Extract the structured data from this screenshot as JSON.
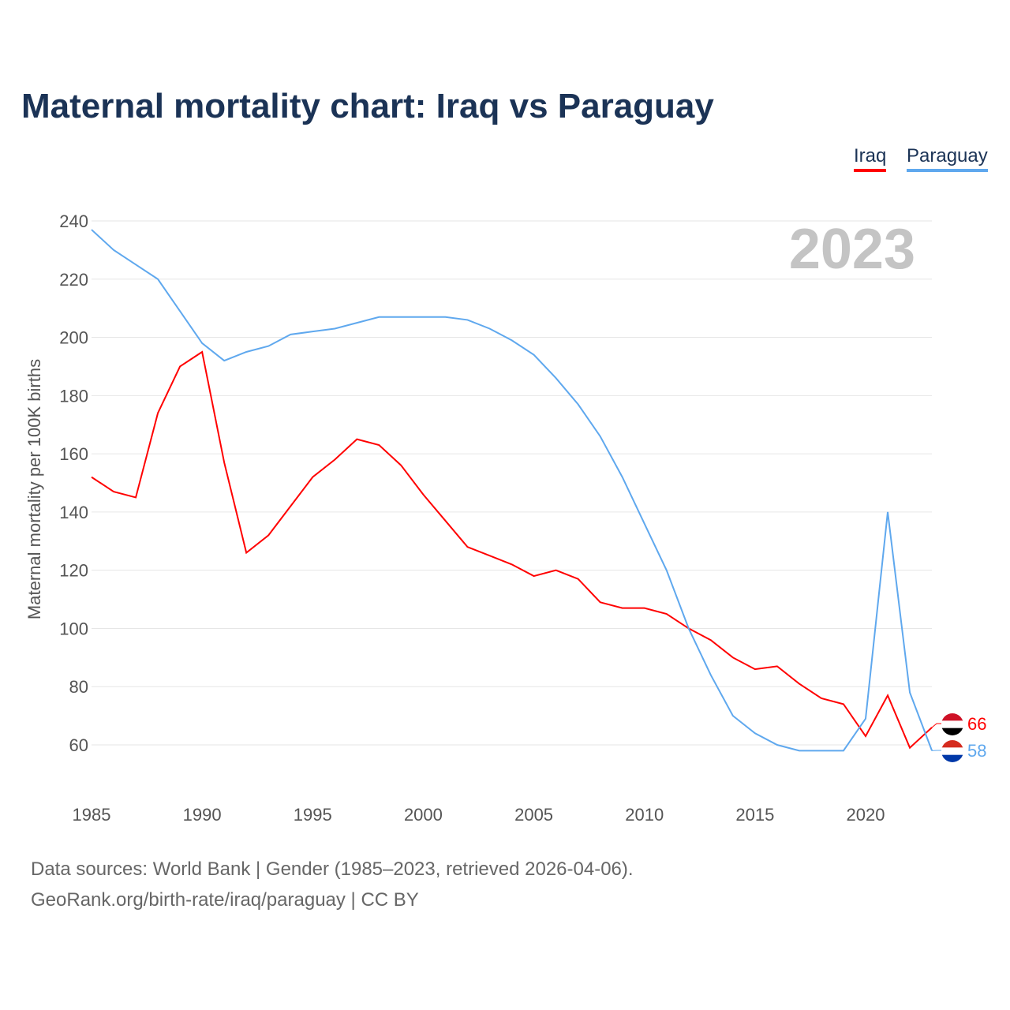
{
  "title": "Maternal mortality chart: Iraq vs Paraguay",
  "legend": [
    "Iraq",
    "Paraguay"
  ],
  "year_label": "2023",
  "source_line1": "Data sources: World Bank | Gender (1985–2023, retrieved 2026-04-06).",
  "source_line2": "GeoRank.org/birth-rate/iraq/paraguay | CC BY",
  "chart_data": {
    "type": "line",
    "title": "Maternal mortality chart: Iraq vs Paraguay",
    "xlabel": "",
    "ylabel": "Maternal mortality per 100K births",
    "ylim": [
      60,
      240
    ],
    "yticks": [
      60,
      80,
      100,
      120,
      140,
      160,
      180,
      200,
      220,
      240
    ],
    "xticks": [
      1985,
      1990,
      1995,
      2000,
      2005,
      2010,
      2015,
      2020
    ],
    "x": [
      1985,
      1986,
      1987,
      1988,
      1989,
      1990,
      1991,
      1992,
      1993,
      1994,
      1995,
      1996,
      1997,
      1998,
      1999,
      2000,
      2001,
      2002,
      2003,
      2004,
      2005,
      2006,
      2007,
      2008,
      2009,
      2010,
      2011,
      2012,
      2013,
      2014,
      2015,
      2016,
      2017,
      2018,
      2019,
      2020,
      2021,
      2022,
      2023
    ],
    "series": [
      {
        "name": "Iraq",
        "color": "#ff0000",
        "end_label": "66",
        "values": [
          152,
          147,
          145,
          174,
          190,
          195,
          157,
          126,
          132,
          142,
          152,
          158,
          165,
          163,
          156,
          146,
          137,
          128,
          125,
          122,
          118,
          120,
          117,
          109,
          107,
          107,
          105,
          100,
          96,
          90,
          86,
          87,
          81,
          76,
          74,
          63,
          77,
          59,
          66
        ]
      },
      {
        "name": "Paraguay",
        "color": "#5fa8ee",
        "end_label": "58",
        "values": [
          237,
          230,
          225,
          220,
          209,
          198,
          192,
          195,
          197,
          201,
          202,
          203,
          205,
          207,
          207,
          207,
          207,
          206,
          203,
          199,
          194,
          186,
          177,
          166,
          152,
          136,
          120,
          100,
          84,
          70,
          64,
          60,
          58,
          58,
          58,
          69,
          140,
          78,
          58
        ]
      }
    ],
    "grid": true,
    "legend_position": "top-right"
  }
}
